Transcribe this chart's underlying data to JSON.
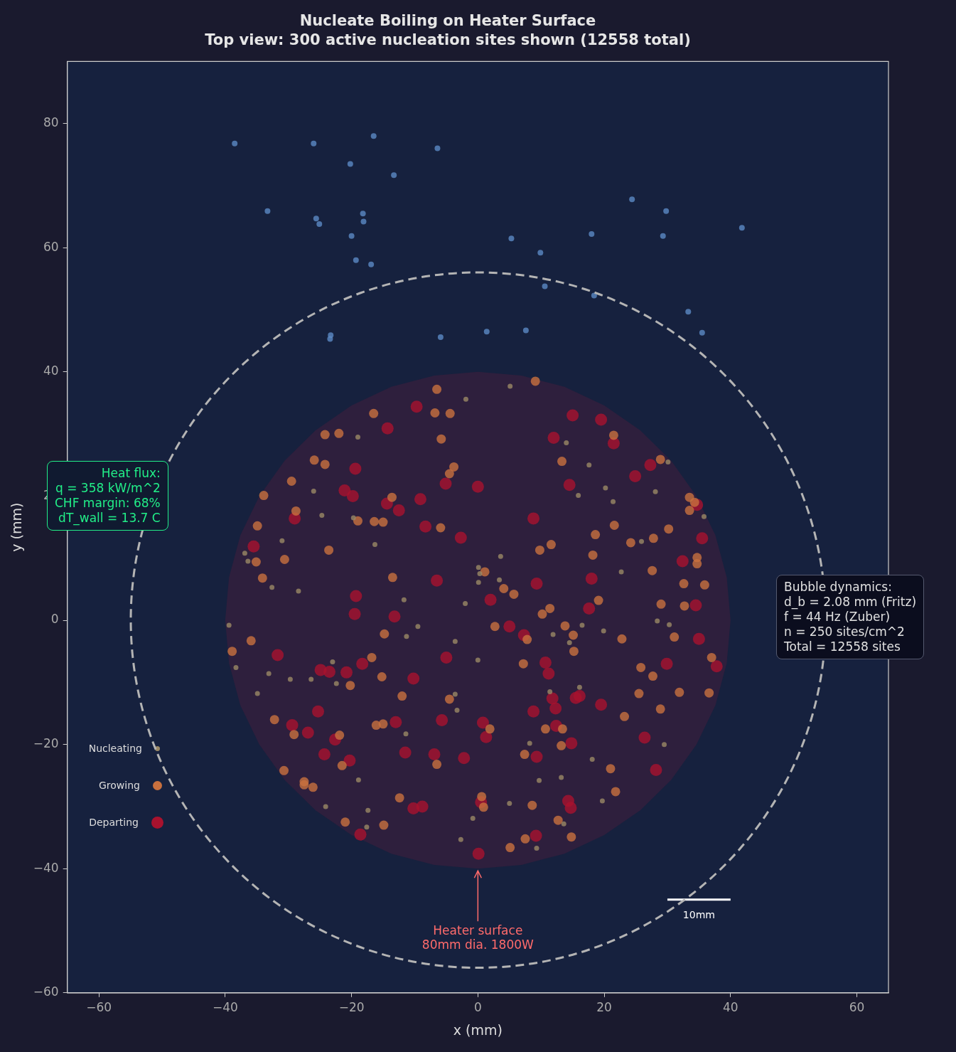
{
  "chart_data": {
    "type": "scatter",
    "title": "Nucleate Boiling on Heater Surface",
    "subtitle": "Top view: 300 active nucleation sites shown (12558 total)",
    "xlabel": "x (mm)",
    "ylabel": "y (mm)",
    "xlim": [
      -65,
      65
    ],
    "ylim": [
      -60,
      90
    ],
    "xticks": [
      -60,
      -40,
      -20,
      0,
      20,
      40,
      60
    ],
    "yticks": [
      -60,
      -40,
      -20,
      0,
      20,
      40,
      60,
      80
    ],
    "grid": false,
    "legend": "bottom left",
    "marker": "circle",
    "annotations": [
      {
        "text": "Heater surface\n80mm dia. 1800W",
        "x": 0,
        "y": -40
      },
      {
        "text": "10mm",
        "x": 35,
        "y": -45
      },
      "Heat flux:\nq = 358 kW/m^2\nCHF margin: 68%\ndT_wall = 13.7 C",
      "Bubble dynamics:\nd_b = 2.08 mm (Fritz)\nf = 44 Hz (Zuber)\nn = 250 sites/cm^2\nTotal = 12558 sites"
    ],
    "series": [
      {
        "type": "area",
        "marker": "none",
        "color": "#2e1f3d",
        "x": [
          40,
          39.4,
          37.6,
          34.6,
          30.6,
          25.7,
          20,
          13.7,
          6.9,
          0,
          -6.9,
          -13.7,
          -20,
          -25.7,
          -30.6,
          -34.6,
          -37.6,
          -39.4,
          -40,
          -39.4,
          -37.6,
          -34.6,
          -30.6,
          -25.7,
          -20,
          -13.7,
          -6.9,
          0,
          6.9,
          13.7,
          20,
          25.7,
          30.6,
          34.6,
          37.6,
          39.4,
          40
        ],
        "values": [
          0,
          6.9,
          13.7,
          20,
          25.7,
          30.6,
          34.6,
          37.6,
          39.4,
          40,
          39.4,
          37.6,
          34.6,
          30.6,
          25.7,
          20,
          13.7,
          6.9,
          0,
          -6.9,
          -13.7,
          -20,
          -25.7,
          -30.6,
          -34.6,
          -37.6,
          -39.4,
          -40,
          -39.4,
          -37.6,
          -34.6,
          -30.6,
          -25.7,
          -20,
          -13.7,
          -6.9,
          0
        ]
      },
      {
        "type": "line",
        "marker": "none",
        "color": "#ffffff",
        "line_style": "solid",
        "x": [
          30,
          40
        ],
        "values": [
          -45,
          -45
        ]
      },
      {
        "type": "scatter",
        "color": "#5b8ac4",
        "x": [
          -38.5,
          -26.0,
          -16.5,
          -6.4,
          -20.2,
          -13.3,
          -33.3,
          -25.6,
          -25.1,
          -18.2,
          -18.1,
          -20.0,
          -19.3,
          -16.9,
          5.3,
          9.9,
          18.0,
          24.4,
          29.8,
          29.3,
          41.8,
          1.4,
          -5.9,
          -23.4,
          -23.3,
          7.6,
          10.6,
          18.4,
          33.3,
          35.5
        ],
        "values": [
          76.8,
          76.8,
          78.0,
          76.0,
          73.5,
          71.7,
          65.9,
          64.7,
          63.8,
          65.5,
          64.2,
          61.9,
          58.0,
          57.3,
          61.5,
          59.2,
          62.2,
          67.8,
          65.9,
          61.9,
          63.2,
          46.5,
          45.6,
          45.3,
          45.9,
          46.7,
          53.8,
          52.3,
          49.7,
          46.3
        ]
      },
      {
        "type": "scatter",
        "name": "Nucleating",
        "color": "#9a8865",
        "x": [
          -1.9,
          5.1,
          -19.0,
          14.0,
          30.1,
          17.6,
          20.2,
          15.9,
          28.1,
          -26.0,
          21.4,
          35.8,
          -24.7,
          -19.7,
          25.9,
          -31.0,
          -36.9,
          -36.4,
          -16.3,
          3.6,
          0.1,
          0.3,
          22.7,
          3.4,
          0.1,
          -32.6,
          -28.4,
          -11.7,
          -2.0,
          28.4,
          30.3,
          16.5,
          19.9,
          -39.4,
          -9.5,
          11.9,
          -11.3,
          -3.6,
          14.5,
          0.0,
          -38.3,
          -23.0,
          -33.1,
          -29.7,
          -26.4,
          -22.4,
          16.1,
          -34.9,
          11.4,
          -3.6,
          -3.3,
          -11.4,
          8.2,
          29.5,
          18.1,
          -18.9,
          13.2,
          9.7,
          5.0,
          -24.1,
          19.7,
          -17.4,
          13.6,
          -0.8,
          -17.6,
          -2.7,
          9.3
        ],
        "values": [
          35.6,
          37.7,
          29.5,
          28.6,
          25.5,
          25.0,
          21.3,
          20.1,
          20.7,
          20.8,
          19.1,
          16.7,
          16.9,
          16.5,
          12.7,
          12.8,
          10.8,
          9.5,
          12.2,
          10.3,
          8.5,
          7.5,
          7.8,
          6.5,
          6.1,
          5.3,
          4.7,
          3.3,
          2.7,
          -0.1,
          -0.7,
          -0.8,
          -1.7,
          -0.8,
          -1.0,
          -2.3,
          -2.6,
          -3.4,
          -3.6,
          -6.4,
          -7.6,
          -6.7,
          -8.6,
          -9.5,
          -9.5,
          -10.2,
          -10.8,
          -11.8,
          -11.5,
          -11.9,
          -14.5,
          -18.3,
          -19.8,
          -20.0,
          -22.4,
          -25.7,
          -25.3,
          -25.8,
          -29.5,
          -30.0,
          -29.1,
          -30.6,
          -32.8,
          -31.9,
          -33.3,
          -35.3,
          -36.7
        ]
      },
      {
        "type": "scatter",
        "name": "Growing",
        "color": "#c8703e",
        "x": [
          9.1,
          -6.5,
          -6.8,
          -4.4,
          -16.5,
          -24.2,
          -22.0,
          -5.8,
          21.5,
          -25.9,
          -24.2,
          28.9,
          13.3,
          -3.8,
          -4.5,
          -29.5,
          -33.9,
          -13.6,
          33.5,
          34.3,
          33.5,
          -28.8,
          -19.0,
          -16.4,
          -15.0,
          -34.9,
          -5.9,
          21.6,
          18.6,
          27.8,
          30.2,
          24.2,
          11.6,
          9.8,
          -35.1,
          -30.6,
          -23.6,
          18.2,
          34.7,
          34.7,
          1.1,
          27.6,
          -34.1,
          -13.5,
          4.1,
          5.7,
          32.6,
          35.9,
          19.1,
          29.0,
          11.4,
          10.2,
          32.7,
          13.8,
          2.7,
          -14.8,
          7.8,
          15.1,
          22.8,
          31.1,
          -35.9,
          -38.9,
          37.0,
          15.2,
          7.2,
          -16.8,
          25.8,
          -15.2,
          27.7,
          -20.2,
          -12.0,
          25.5,
          31.9,
          36.6,
          -4.5,
          28.9,
          23.2,
          -32.2,
          -16.1,
          -15.0,
          1.9,
          10.7,
          13.4,
          -29.1,
          -21.9,
          13.2,
          7.4,
          -6.5,
          -21.5,
          21.0,
          -30.7,
          -27.5,
          -27.5,
          -26.1,
          21.8,
          0.6,
          -12.4,
          0.9,
          8.6,
          -21.0,
          -14.9,
          12.7,
          7.5,
          14.8,
          5.1
        ],
        "values": [
          38.5,
          37.2,
          33.4,
          33.3,
          33.3,
          29.9,
          30.1,
          29.2,
          29.8,
          25.8,
          25.1,
          25.9,
          25.6,
          24.7,
          23.6,
          22.4,
          20.1,
          19.8,
          19.8,
          19.0,
          17.7,
          17.6,
          16.0,
          15.9,
          15.8,
          15.2,
          14.9,
          15.3,
          13.8,
          13.2,
          14.7,
          12.5,
          12.2,
          11.3,
          9.4,
          9.8,
          11.3,
          10.5,
          9.1,
          10.1,
          7.8,
          8.0,
          6.8,
          6.9,
          5.1,
          4.2,
          5.9,
          5.7,
          3.2,
          2.6,
          1.9,
          1.0,
          2.3,
          -0.9,
          -1.0,
          -2.2,
          -3.1,
          -2.4,
          -3.0,
          -2.7,
          -3.3,
          -5.0,
          -6.0,
          -5.0,
          -7.0,
          -6.0,
          -7.6,
          -9.1,
          -9.0,
          -10.5,
          -12.2,
          -11.8,
          -11.6,
          -11.7,
          -12.7,
          -14.3,
          -15.5,
          -16.0,
          -16.9,
          -16.7,
          -17.5,
          -17.5,
          -17.5,
          -18.4,
          -18.5,
          -20.2,
          -21.6,
          -23.2,
          -23.4,
          -23.9,
          -24.2,
          -26.0,
          -26.5,
          -26.9,
          -27.6,
          -28.4,
          -28.6,
          -30.1,
          -29.8,
          -32.5,
          -33.0,
          -32.2,
          -35.2,
          -34.9,
          -36.6
        ]
      },
      {
        "type": "scatter",
        "name": "Departing",
        "color": "#a8122e",
        "x": [
          -9.7,
          15.0,
          19.5,
          -14.3,
          12.0,
          21.5,
          27.3,
          -19.4,
          24.9,
          -5.1,
          0.0,
          14.5,
          -21.1,
          -19.8,
          -9.1,
          -14.4,
          -12.5,
          34.7,
          -29.0,
          -8.3,
          8.8,
          -2.7,
          35.5,
          -35.5,
          32.4,
          -6.5,
          18.0,
          9.3,
          -19.3,
          2.0,
          17.6,
          34.5,
          -13.2,
          -19.5,
          5.0,
          7.3,
          35.0,
          -31.7,
          -5.0,
          37.8,
          -24.9,
          -23.5,
          10.7,
          -18.3,
          29.9,
          11.2,
          -20.8,
          -10.2,
          11.8,
          15.5,
          16.1,
          12.3,
          8.8,
          -25.3,
          19.5,
          -13.0,
          -5.7,
          0.8,
          -29.4,
          12.4,
          -26.9,
          -22.6,
          1.3,
          26.4,
          14.8,
          -11.5,
          -24.3,
          -6.9,
          9.3,
          -2.2,
          -20.3,
          28.2,
          0.5,
          14.3,
          14.7,
          -8.8,
          -10.2,
          -18.6,
          9.2,
          0.1
        ],
        "values": [
          34.4,
          33.0,
          32.3,
          30.9,
          29.4,
          28.5,
          25.0,
          24.4,
          23.2,
          22.0,
          21.5,
          21.8,
          20.9,
          20.0,
          19.5,
          18.8,
          17.7,
          18.6,
          16.4,
          15.1,
          16.4,
          13.3,
          13.2,
          11.9,
          9.5,
          6.4,
          6.7,
          5.9,
          3.9,
          3.3,
          1.9,
          2.4,
          0.6,
          1.0,
          -1.0,
          -2.4,
          -3.0,
          -5.6,
          -6.0,
          -7.4,
          -8.0,
          -8.3,
          -6.8,
          -7.0,
          -7.0,
          -8.6,
          -8.4,
          -9.4,
          -12.6,
          -12.5,
          -12.2,
          -14.2,
          -14.7,
          -14.7,
          -13.6,
          -16.4,
          -16.1,
          -16.5,
          -16.9,
          -17.0,
          -18.1,
          -19.2,
          -18.8,
          -18.9,
          -19.8,
          -21.3,
          -21.6,
          -21.6,
          -22.0,
          -22.2,
          -22.6,
          -24.1,
          -29.3,
          -29.1,
          -30.2,
          -30.0,
          -30.3,
          -34.5,
          -34.7,
          -37.6
        ]
      }
    ]
  }
}
